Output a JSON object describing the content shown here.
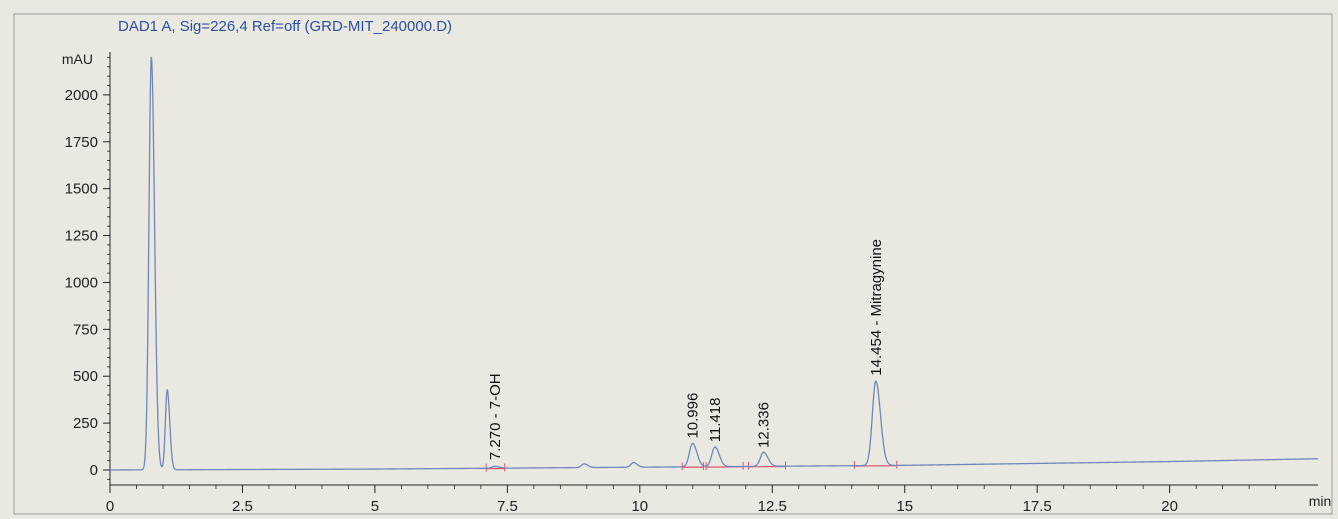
{
  "chart_data": {
    "type": "line",
    "title": "DAD1 A, Sig=226,4 Ref=off (GRD-MIT_240000.D)",
    "ylabel": "mAU",
    "xlabel": "min",
    "xlim": [
      0,
      22.8
    ],
    "ylim": [
      -80,
      2250
    ],
    "x_ticks": [
      0,
      2.5,
      5,
      7.5,
      10,
      12.5,
      15,
      17.5,
      20
    ],
    "x_tick_labels": [
      "0",
      "2.5",
      "5",
      "7.5",
      "10",
      "12.5",
      "15",
      "17.5",
      "20"
    ],
    "y_ticks": [
      0,
      250,
      500,
      750,
      1000,
      1250,
      1500,
      1750,
      2000
    ],
    "y_tick_labels": [
      "0",
      "250",
      "500",
      "750",
      "1000",
      "1250",
      "1500",
      "1750",
      "2000"
    ],
    "grid": false,
    "baseline": [
      [
        0,
        0
      ],
      [
        5,
        5
      ],
      [
        10,
        15
      ],
      [
        12.5,
        20
      ],
      [
        15,
        25
      ],
      [
        17.5,
        35
      ],
      [
        20,
        45
      ],
      [
        22.8,
        60
      ]
    ],
    "peaks": [
      {
        "rt": 0.78,
        "height": 2200,
        "width": 0.045
      },
      {
        "rt": 1.08,
        "height": 425,
        "width": 0.035
      },
      {
        "rt": 7.27,
        "height": 10,
        "width": 0.06
      },
      {
        "rt": 8.95,
        "height": 20,
        "width": 0.05
      },
      {
        "rt": 9.88,
        "height": 25,
        "width": 0.05
      },
      {
        "rt": 10.996,
        "height": 125,
        "width": 0.06
      },
      {
        "rt": 11.418,
        "height": 105,
        "width": 0.06
      },
      {
        "rt": 12.336,
        "height": 75,
        "width": 0.06
      },
      {
        "rt": 14.454,
        "height": 450,
        "width": 0.065
      }
    ],
    "peak_labels": [
      {
        "x": 7.27,
        "y": 10,
        "text": "7.270 -  7-OH"
      },
      {
        "x": 10.996,
        "y": 125,
        "text": "10.996"
      },
      {
        "x": 11.418,
        "y": 105,
        "text": "11.418"
      },
      {
        "x": 12.336,
        "y": 75,
        "text": "12.336"
      },
      {
        "x": 14.454,
        "y": 460,
        "text": "14.454 -  Mitragynine"
      }
    ],
    "integration_baselines": [
      [
        7.1,
        7.45
      ],
      [
        10.8,
        11.2
      ],
      [
        11.25,
        11.95
      ],
      [
        12.05,
        12.75
      ],
      [
        14.05,
        14.85
      ]
    ],
    "colors": {
      "signal": "#6f86b8",
      "title": "#2e4fa0",
      "integration": "#e0516c",
      "axis": "#222222"
    }
  }
}
